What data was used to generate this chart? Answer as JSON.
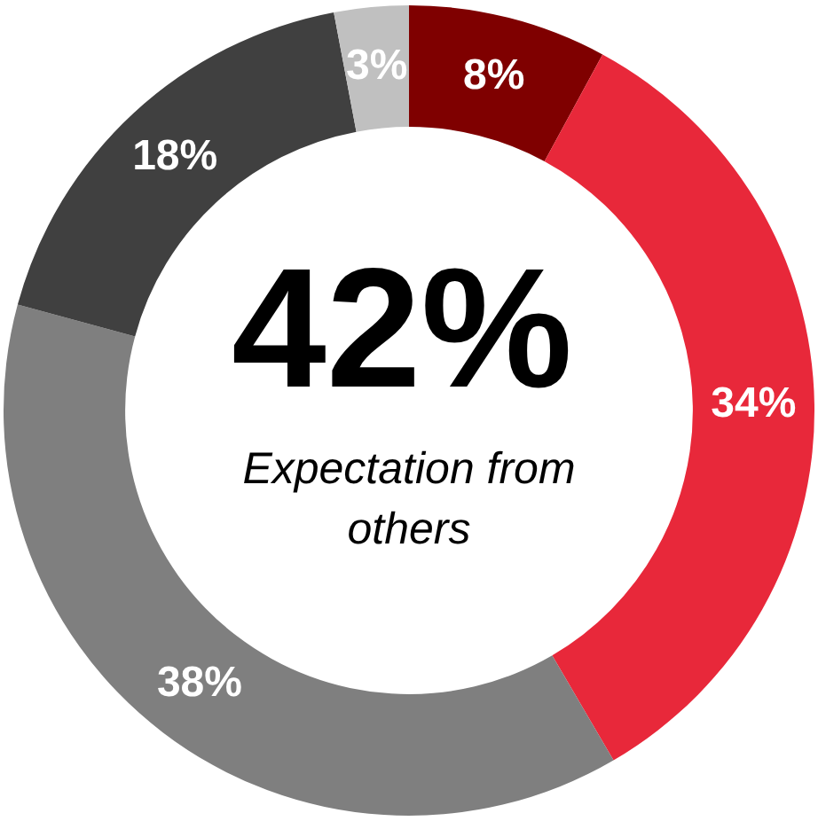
{
  "chart_data": {
    "type": "donut",
    "categories": [
      null,
      null,
      null,
      null,
      null
    ],
    "values": [
      8,
      34,
      38,
      18,
      3
    ],
    "colors": [
      "#7f0000",
      "#e8283a",
      "#7f7f7f",
      "#404040",
      "#c0c0c0"
    ],
    "value_labels": [
      "8%",
      "34%",
      "38%",
      "18%",
      "3%"
    ],
    "annotations": [
      "42%",
      "Expectation from others"
    ]
  }
}
